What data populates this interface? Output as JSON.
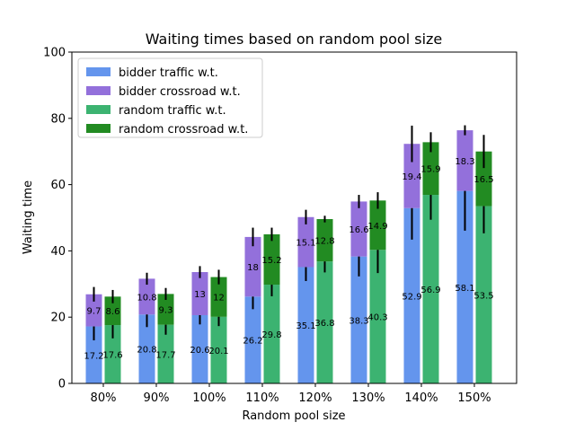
{
  "chart_data": {
    "type": "bar",
    "title": "Waiting times based on random pool size",
    "xlabel": "Random pool size",
    "ylabel": "Waiting time",
    "ylim": [
      0,
      100
    ],
    "yticks": [
      "0",
      "20",
      "40",
      "60",
      "80",
      "100"
    ],
    "categories": [
      "80%",
      "90%",
      "100%",
      "110%",
      "120%",
      "130%",
      "140%",
      "150%"
    ],
    "grid": false,
    "legend_position": "top-left",
    "stacked_groups": [
      {
        "group": "bidder",
        "segments": [
          {
            "name": "bidder traffic w.t.",
            "color": "#6495ED",
            "values": [
              17.2,
              20.8,
              20.6,
              26.2,
              35.1,
              38.3,
              52.9,
              58.1
            ],
            "labels": [
              "17.2",
              "20.8",
              "20.6",
              "26.2",
              "35.1",
              "38.3",
              "52.9",
              "58.1"
            ],
            "error": [
              4.2,
              3.8,
              2.8,
              3.8,
              4.2,
              6.0,
              9.5,
              12.0
            ]
          },
          {
            "name": "bidder crossroad w.t.",
            "color": "#9370DB",
            "values": [
              9.7,
              10.8,
              13,
              18,
              15.1,
              16.6,
              19.4,
              18.3
            ],
            "labels": [
              "9.7",
              "10.8",
              "13",
              "18",
              "15.1",
              "16.6",
              "19.4",
              "18.3"
            ],
            "error": [
              2.2,
              1.8,
              1.8,
              2.8,
              2.2,
              2.0,
              5.5,
              1.5
            ]
          }
        ]
      },
      {
        "group": "random",
        "segments": [
          {
            "name": "random traffic w.t.",
            "color": "#3CB371",
            "values": [
              17.6,
              17.7,
              20.1,
              29.8,
              36.8,
              40.3,
              56.9,
              53.5
            ],
            "labels": [
              "17.6",
              "17.7",
              "20.1",
              "29.8",
              "36.8",
              "40.3",
              "56.9",
              "53.5"
            ],
            "error": [
              4.0,
              3.0,
              2.8,
              3.5,
              3.3,
              7.0,
              7.5,
              8.2
            ]
          },
          {
            "name": "random crossroad w.t.",
            "color": "#228B22",
            "values": [
              8.6,
              9.3,
              12,
              15.2,
              12.8,
              14.9,
              15.9,
              16.5
            ],
            "labels": [
              "8.6",
              "9.3",
              "12",
              "15.2",
              "12.8",
              "14.9",
              "15.9",
              "16.5"
            ],
            "error": [
              2.0,
              1.8,
              2.2,
              2.0,
              1.0,
              2.5,
              3.0,
              5.0
            ]
          }
        ]
      }
    ]
  }
}
